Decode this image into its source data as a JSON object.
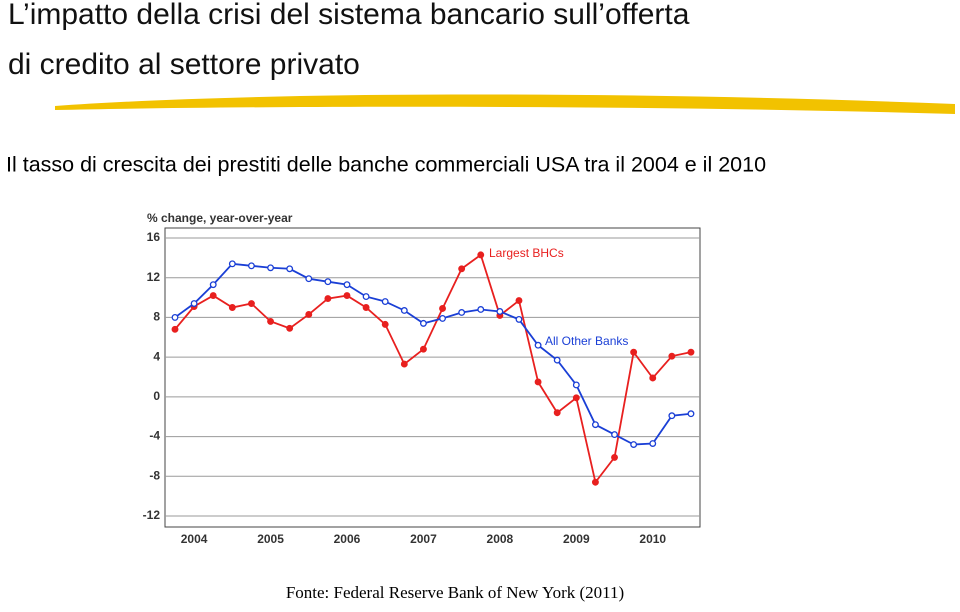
{
  "header": {
    "title_line1": "L’impatto della crisi del sistema bancario sull’offerta",
    "title_line2": "di credito al settore privato",
    "subtitle": "Il tasso di crescita dei prestiti delle banche commerciali USA tra il 2004 e il 2010"
  },
  "chart_data": {
    "type": "line",
    "y_label": "% change, year-over-year",
    "years": [
      "2004",
      "2005",
      "2006",
      "2007",
      "2008",
      "2009",
      "2010"
    ],
    "ylim": [
      -12,
      16
    ],
    "yticks": [
      16,
      12,
      8,
      4,
      0,
      -4,
      -8,
      -12
    ],
    "grid": true,
    "series": [
      {
        "name": "Largest BHCs",
        "color": "#e8201f",
        "values": [
          6.8,
          9.1,
          10.2,
          9.0,
          9.4,
          7.6,
          6.9,
          8.3,
          9.9,
          10.2,
          9.0,
          7.3,
          3.3,
          4.8,
          8.9,
          12.9,
          14.3,
          8.2,
          9.7,
          1.5,
          -1.6,
          -0.1,
          -8.6,
          -6.1,
          4.5,
          1.9,
          4.1,
          4.5
        ]
      },
      {
        "name": "All Other Banks",
        "color": "#1a3fd6",
        "values": [
          8.0,
          9.4,
          11.3,
          13.4,
          13.2,
          13.0,
          12.9,
          11.9,
          11.6,
          11.3,
          10.1,
          9.6,
          8.7,
          7.4,
          7.9,
          8.5,
          8.8,
          8.6,
          7.8,
          5.2,
          3.7,
          1.2,
          -2.8,
          -3.8,
          -4.8,
          -4.7,
          -1.9,
          -1.7
        ]
      }
    ]
  },
  "footer": {
    "source": "Fonte: Federal Reserve Bank of New York (2011)"
  }
}
